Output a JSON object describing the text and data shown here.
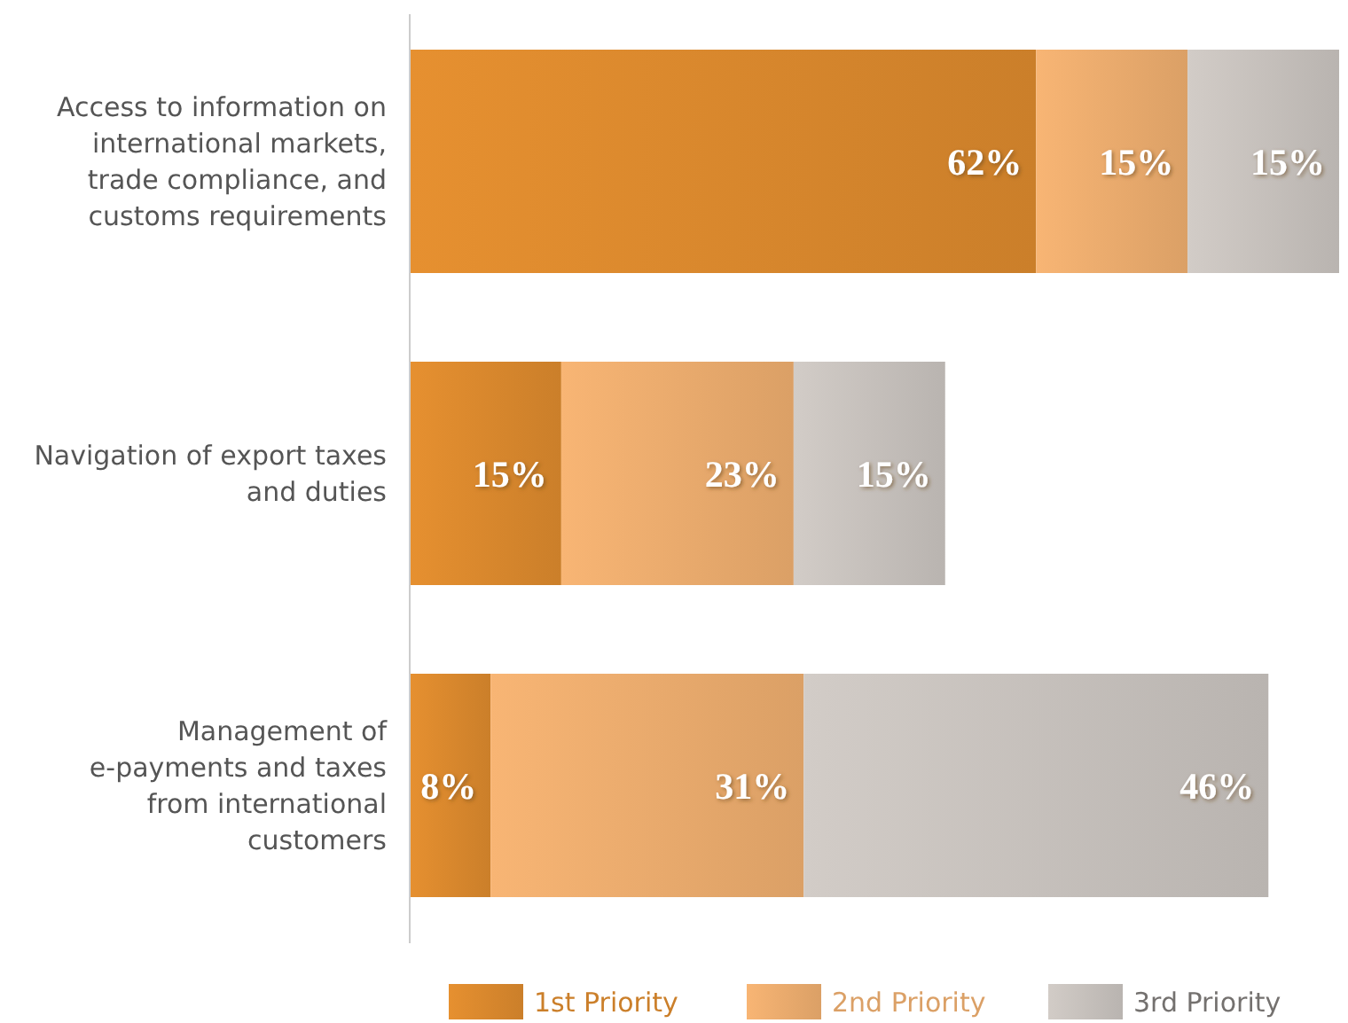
{
  "chart_data": {
    "type": "bar",
    "orientation": "horizontal",
    "stacked": true,
    "categories": [
      "Access to information on international markets, trade compliance, and customs requirements",
      "Navigation of export taxes and duties",
      "Management of e-payments and taxes from international customers"
    ],
    "series": [
      {
        "name": "1st Priority",
        "color": "#cb7f2a",
        "values": [
          62,
          15,
          8
        ],
        "value_labels": [
          "62%",
          "15%",
          "8%"
        ]
      },
      {
        "name": "2nd Priority",
        "color": "#dba066",
        "values": [
          15,
          23,
          31
        ],
        "value_labels": [
          "15%",
          "23%",
          "31%"
        ]
      },
      {
        "name": "3rd Priority",
        "color": "#b9b4b0",
        "values": [
          15,
          15,
          46
        ],
        "value_labels": [
          "15%",
          "15%",
          "46%"
        ]
      }
    ],
    "legend": "bottom"
  }
}
